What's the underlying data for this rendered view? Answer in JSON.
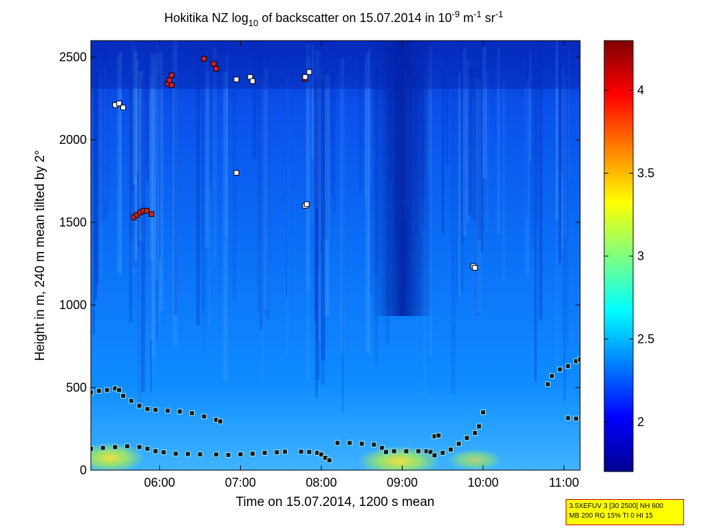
{
  "chart_data": {
    "type": "heatmap",
    "title": {
      "prefix": "Hokitika NZ log",
      "sub": "10",
      "mid1": " of backscatter on 15.07.2014 in 10",
      "sup1": "-9",
      "mid2": " m",
      "sup2": "-1",
      "mid3": " sr",
      "sup3": "-1"
    },
    "xlabel": "Time on 15.07.2014, 1200 s mean",
    "ylabel": "Height in m, 240 m mean tilted by 2°",
    "xlim": [
      5.15,
      11.2
    ],
    "ylim": [
      0,
      2600
    ],
    "x_ticks": [
      6,
      7,
      8,
      9,
      10,
      11
    ],
    "x_ticklabels": [
      "06:00",
      "07:00",
      "08:00",
      "09:00",
      "10:00",
      "11:00"
    ],
    "y_ticks": [
      0,
      500,
      1000,
      1500,
      2000,
      2500
    ],
    "y_ticklabels": [
      "0",
      "500",
      "1000",
      "1500",
      "2000",
      "2500"
    ],
    "colorbar": {
      "range": [
        1.7,
        4.3
      ],
      "ticks": [
        2,
        2.5,
        3,
        3.5,
        4
      ],
      "ticklabels": [
        "2",
        "2.5",
        "3",
        "3.5",
        "4"
      ],
      "colormap": "jet"
    },
    "layer_markers": [
      {
        "name": "surface layer",
        "color": "#1a1a1a",
        "points": [
          [
            5.15,
            130
          ],
          [
            5.3,
            135
          ],
          [
            5.45,
            140
          ],
          [
            5.6,
            145
          ],
          [
            5.75,
            140
          ],
          [
            5.85,
            130
          ],
          [
            5.95,
            115
          ],
          [
            6.05,
            108
          ],
          [
            6.2,
            100
          ],
          [
            6.35,
            98
          ],
          [
            6.5,
            96
          ],
          [
            6.7,
            95
          ],
          [
            6.85,
            92
          ],
          [
            7.0,
            96
          ],
          [
            7.15,
            100
          ],
          [
            7.3,
            105
          ],
          [
            7.45,
            108
          ],
          [
            7.55,
            112
          ],
          [
            7.75,
            112
          ],
          [
            7.85,
            110
          ],
          [
            7.95,
            105
          ],
          [
            8.0,
            95
          ],
          [
            8.05,
            75
          ],
          [
            8.1,
            60
          ],
          [
            8.2,
            165
          ],
          [
            8.35,
            165
          ],
          [
            8.5,
            160
          ],
          [
            8.65,
            155
          ],
          [
            8.75,
            135
          ],
          [
            8.8,
            110
          ],
          [
            8.9,
            115
          ],
          [
            9.05,
            115
          ],
          [
            9.2,
            115
          ],
          [
            9.3,
            115
          ],
          [
            9.35,
            110
          ],
          [
            9.4,
            90
          ],
          [
            9.5,
            105
          ],
          [
            9.6,
            125
          ],
          [
            9.7,
            160
          ],
          [
            9.8,
            195
          ],
          [
            9.9,
            225
          ],
          [
            9.95,
            265
          ],
          [
            10.0,
            350
          ]
        ]
      },
      {
        "name": "boundary layer",
        "color": "#1a1a1a",
        "points": [
          [
            5.15,
            470
          ],
          [
            5.25,
            480
          ],
          [
            5.35,
            485
          ],
          [
            5.45,
            495
          ],
          [
            5.5,
            485
          ],
          [
            5.55,
            450
          ],
          [
            5.65,
            420
          ],
          [
            5.75,
            390
          ],
          [
            5.85,
            370
          ],
          [
            5.95,
            365
          ],
          [
            6.1,
            360
          ],
          [
            6.25,
            355
          ],
          [
            6.4,
            345
          ],
          [
            6.55,
            325
          ],
          [
            6.7,
            305
          ],
          [
            6.75,
            295
          ],
          [
            9.4,
            205
          ],
          [
            9.45,
            210
          ],
          [
            10.8,
            520
          ],
          [
            10.85,
            570
          ],
          [
            10.95,
            610
          ],
          [
            11.05,
            630
          ],
          [
            11.15,
            660
          ],
          [
            11.2,
            670
          ],
          [
            11.05,
            315
          ],
          [
            11.15,
            312
          ]
        ]
      },
      {
        "name": "lower cloud",
        "color": "#d42020",
        "points": [
          [
            5.68,
            1530
          ],
          [
            5.72,
            1545
          ],
          [
            5.76,
            1560
          ],
          [
            5.8,
            1570
          ],
          [
            5.84,
            1570
          ],
          [
            5.9,
            1550
          ]
        ]
      },
      {
        "name": "upper cloud",
        "color": "#d42020",
        "points": [
          [
            6.1,
            2340
          ],
          [
            6.12,
            2360
          ],
          [
            6.15,
            2390
          ],
          [
            6.15,
            2330
          ],
          [
            6.55,
            2490
          ],
          [
            6.67,
            2460
          ],
          [
            6.7,
            2430
          ],
          [
            7.8,
            2370
          ]
        ]
      },
      {
        "name": "high aerosol",
        "color": "#ffffff",
        "points": [
          [
            5.45,
            2210
          ],
          [
            5.5,
            2220
          ],
          [
            5.55,
            2195
          ],
          [
            6.95,
            2365
          ],
          [
            7.12,
            2380
          ],
          [
            7.15,
            2355
          ],
          [
            7.8,
            2380
          ],
          [
            7.85,
            2410
          ],
          [
            6.95,
            1800
          ],
          [
            7.8,
            1600
          ],
          [
            7.82,
            1610
          ],
          [
            9.88,
            1235
          ],
          [
            9.9,
            1225
          ]
        ]
      }
    ]
  },
  "info_box": {
    "line1": "3.5XEFUV 3 [30 2500] NH 600",
    "line2": "MB 200 RG 15% TI 0 HI 15"
  }
}
